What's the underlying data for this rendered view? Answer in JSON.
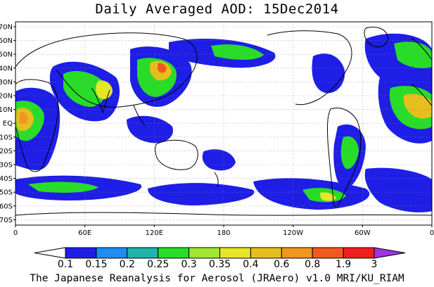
{
  "title": "Daily Averaged AOD: 15Dec2014",
  "footer": "The Japanese Reanalysis for Aerosol (JRAero) v1.0 MRI/KU_RIAM",
  "lat_labels": [
    "70N",
    "60N",
    "50N",
    "40N",
    "30N",
    "20N",
    "10N",
    "EQ",
    "10S",
    "20S",
    "30S",
    "40S",
    "50S",
    "60S",
    "70S"
  ],
  "lon_labels": [
    "0",
    "60E",
    "120E",
    "180",
    "120W",
    "60W",
    "0"
  ],
  "colorbar": {
    "labels": [
      "0.1",
      "0.15",
      "0.2",
      "0.25",
      "0.3",
      "0.35",
      "0.4",
      "0.6",
      "0.8",
      "1.9",
      "3"
    ],
    "colors": [
      "#ffffff",
      "#1e1ee6",
      "#1e8cf0",
      "#1eb4aa",
      "#28dc28",
      "#a0e632",
      "#e6e628",
      "#e6be1e",
      "#f0961e",
      "#f05a1e",
      "#f01e1e",
      "#a032e6"
    ]
  },
  "colors": {
    "ocean": "#ffffff",
    "coast": "#000000",
    "grid": "#888888"
  }
}
